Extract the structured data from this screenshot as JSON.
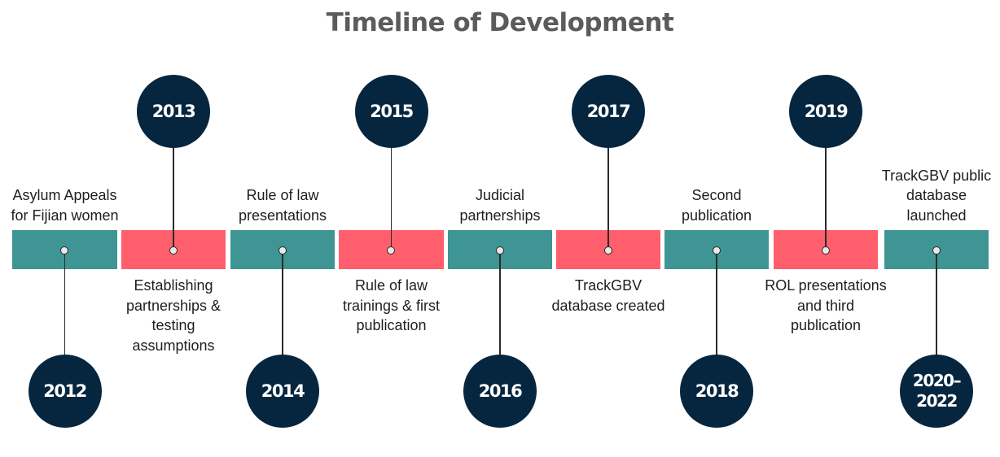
{
  "title": "Timeline of Development",
  "colors": {
    "teal": "#3f9494",
    "coral": "#ff5f6d",
    "navy": "#062640"
  },
  "milestones": [
    {
      "year": "2012",
      "label": "Asylum Appeals for Fijian women",
      "color": "#3f9494"
    },
    {
      "year": "2013",
      "label": "Establishing partnerships & testing assumptions",
      "color": "#ff5f6d"
    },
    {
      "year": "2014",
      "label": "Rule of law presentations",
      "color": "#3f9494"
    },
    {
      "year": "2015",
      "label": "Rule of law trainings & first publication",
      "color": "#ff5f6d"
    },
    {
      "year": "2016",
      "label": "Judicial partnerships",
      "color": "#3f9494"
    },
    {
      "year": "2017",
      "label": "TrackGBV database created",
      "color": "#ff5f6d"
    },
    {
      "year": "2018",
      "label": "Second publication",
      "color": "#3f9494"
    },
    {
      "year": "2019",
      "label": "ROL presentations and third publication",
      "color": "#ff5f6d"
    },
    {
      "year": "2020-2022",
      "label": "TrackGBV public database launched",
      "color": "#3f9494"
    }
  ]
}
